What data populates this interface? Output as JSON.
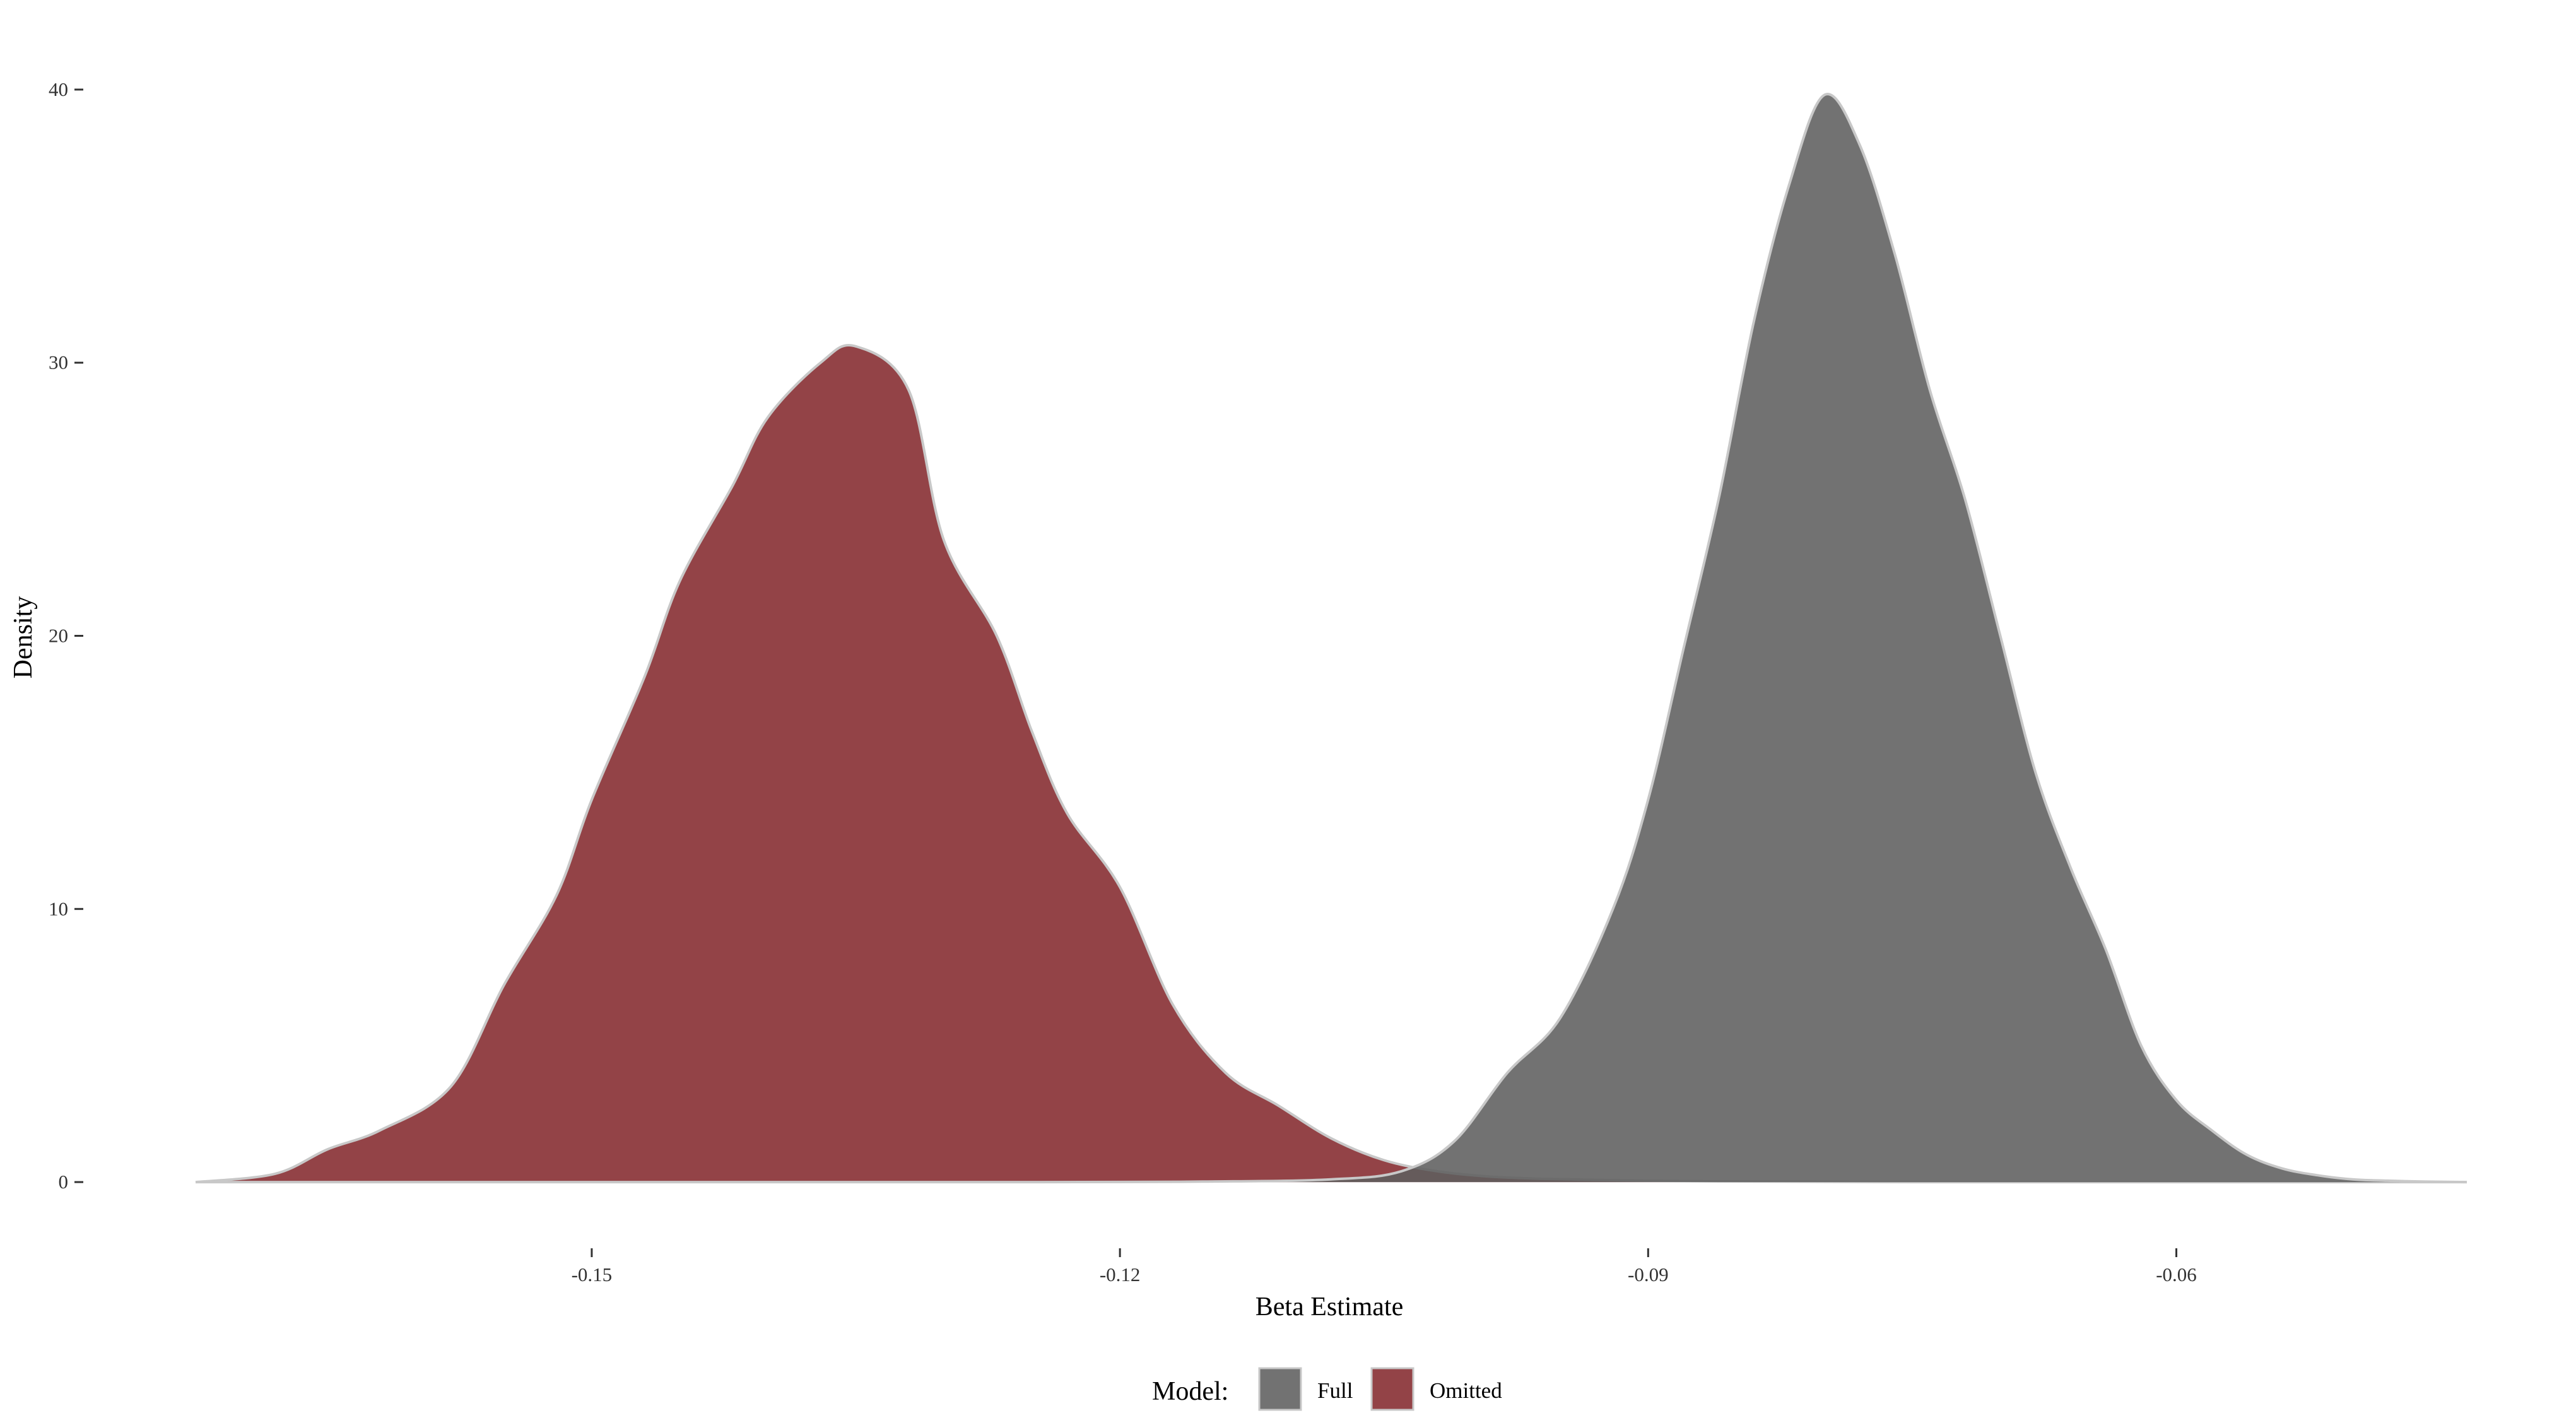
{
  "chart_data": {
    "type": "area",
    "title": "",
    "xlabel": "Beta Estimate",
    "ylabel": "Density",
    "xlim": [
      -0.1725,
      -0.0435
    ],
    "ylim": [
      -1.2,
      41.2
    ],
    "x_ticks": [
      {
        "value": -0.15,
        "label": "-0.15"
      },
      {
        "value": -0.12,
        "label": "-0.12"
      },
      {
        "value": -0.09,
        "label": "-0.09"
      },
      {
        "value": -0.06,
        "label": "-0.06"
      }
    ],
    "y_ticks": [
      {
        "value": 0,
        "label": "0"
      },
      {
        "value": 10,
        "label": "10"
      },
      {
        "value": 20,
        "label": "20"
      },
      {
        "value": 30,
        "label": "30"
      },
      {
        "value": 40,
        "label": "40"
      }
    ],
    "grid": false,
    "legend": {
      "title": "Model:",
      "position": "bottom"
    },
    "series": [
      {
        "name": "Omitted",
        "color": "#7b1a1e",
        "opacity": 0.82,
        "outline": "#c8c8c8",
        "x": [
          -0.1725,
          -0.168,
          -0.165,
          -0.162,
          -0.158,
          -0.155,
          -0.152,
          -0.15,
          -0.147,
          -0.145,
          -0.142,
          -0.14,
          -0.137,
          -0.135,
          -0.132,
          -0.13,
          -0.127,
          -0.125,
          -0.123,
          -0.12,
          -0.117,
          -0.114,
          -0.111,
          -0.108,
          -0.105,
          -0.102,
          -0.099,
          -0.096,
          -0.093,
          -0.09,
          -0.087,
          -0.084,
          -0.08,
          -0.075,
          -0.07,
          -0.065,
          -0.06,
          -0.055,
          -0.05,
          -0.0435
        ],
        "y": [
          0.0,
          0.3,
          1.2,
          1.9,
          3.5,
          7.2,
          10.5,
          14.0,
          18.5,
          22.0,
          25.5,
          28.0,
          30.0,
          30.6,
          29.0,
          23.5,
          20.0,
          16.5,
          13.5,
          10.8,
          6.5,
          4.0,
          2.8,
          1.6,
          0.8,
          0.4,
          0.2,
          0.12,
          0.08,
          0.05,
          0.03,
          0.02,
          0.01,
          0.0,
          0.0,
          0.0,
          0.0,
          0.0,
          0.0,
          0.0
        ]
      },
      {
        "name": "Full",
        "color": "#5e5e5e",
        "opacity": 0.88,
        "outline": "#c8c8c8",
        "x": [
          -0.1725,
          -0.125,
          -0.115,
          -0.108,
          -0.104,
          -0.101,
          -0.098,
          -0.095,
          -0.092,
          -0.09,
          -0.088,
          -0.086,
          -0.084,
          -0.082,
          -0.08,
          -0.078,
          -0.076,
          -0.074,
          -0.072,
          -0.07,
          -0.068,
          -0.066,
          -0.064,
          -0.062,
          -0.06,
          -0.058,
          -0.056,
          -0.054,
          -0.052,
          -0.05,
          -0.048,
          -0.046,
          -0.0435
        ],
        "y": [
          0.0,
          0.0,
          0.02,
          0.1,
          0.4,
          1.5,
          4.0,
          6.0,
          10.0,
          14.0,
          19.5,
          25.0,
          31.5,
          36.5,
          39.8,
          38.0,
          34.0,
          29.0,
          25.0,
          20.0,
          15.0,
          11.5,
          8.5,
          5.0,
          3.0,
          1.9,
          1.0,
          0.5,
          0.25,
          0.1,
          0.05,
          0.02,
          0.0
        ]
      }
    ],
    "overlap_color": "#6b1a1d"
  }
}
